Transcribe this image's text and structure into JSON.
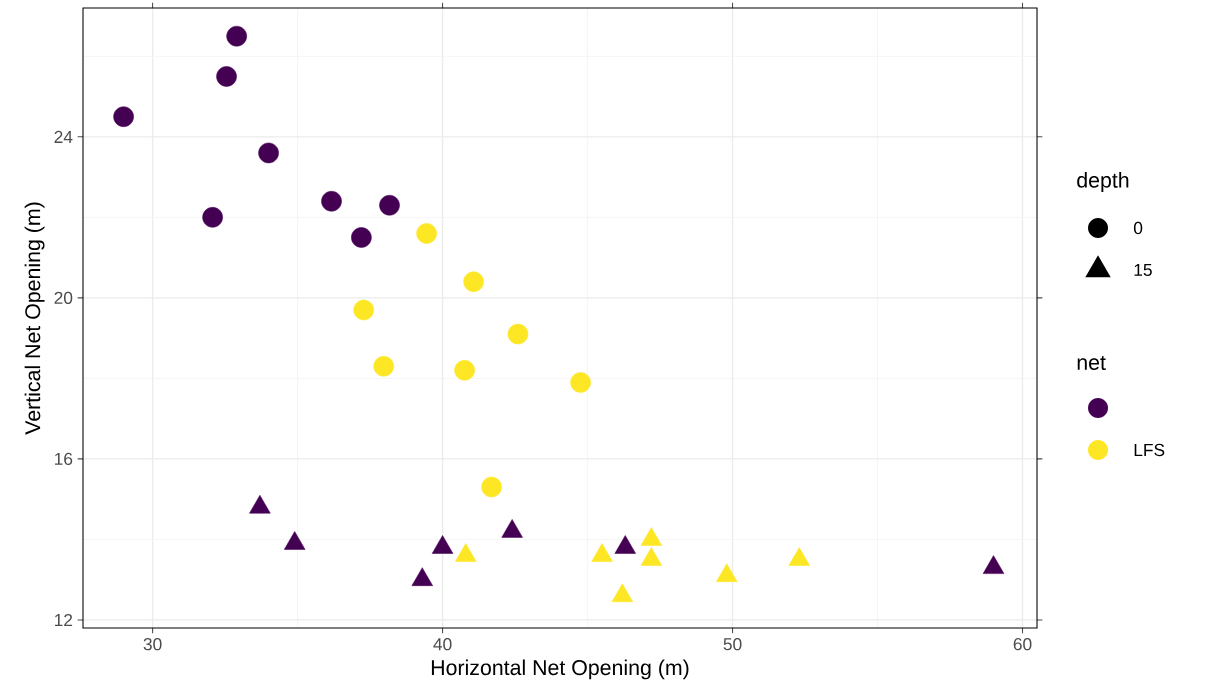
{
  "chart_data": {
    "type": "scatter",
    "xlabel": "Horizontal Net Opening (m)",
    "ylabel": "Vertical Net Opening (m)",
    "xlim": [
      27.6,
      60.5
    ],
    "ylim": [
      11.8,
      27.2
    ],
    "xticks": [
      30,
      40,
      50,
      60
    ],
    "yticks": [
      12,
      16,
      20,
      24
    ],
    "grid": true,
    "legend": "right",
    "legend_title": "net",
    "annotations": [
      "depth",
      "0",
      "15"
    ],
    "series": [
      {
        "color": "#440154",
        "marker": "circle",
        "x": [
          29.0,
          32.9,
          32.55,
          34.0,
          32.07,
          36.17,
          38.17,
          37.2
        ],
        "values": [
          24.5,
          26.5,
          25.5,
          23.6,
          22.0,
          22.4,
          22.3,
          21.5
        ]
      },
      {
        "color": "#440154",
        "marker": "triangle",
        "x": [
          33.7,
          34.9,
          39.3,
          40.0,
          42.4,
          46.3,
          59.0
        ],
        "values": [
          14.8,
          13.9,
          13.0,
          13.8,
          14.2,
          13.8,
          13.3
        ]
      },
      {
        "name": "LFS",
        "color": "#fde725",
        "marker": "circle",
        "x": [
          39.45,
          41.07,
          37.28,
          42.6,
          37.97,
          40.76,
          44.76,
          41.69
        ],
        "values": [
          21.6,
          20.4,
          19.7,
          19.1,
          18.3,
          18.2,
          17.9,
          15.3
        ]
      },
      {
        "color": "#fde725",
        "marker": "triangle",
        "x": [
          40.8,
          45.5,
          47.2,
          47.2,
          46.2,
          49.8,
          52.3
        ],
        "values": [
          13.6,
          13.6,
          14.0,
          13.5,
          12.6,
          13.1,
          13.5
        ]
      }
    ]
  }
}
